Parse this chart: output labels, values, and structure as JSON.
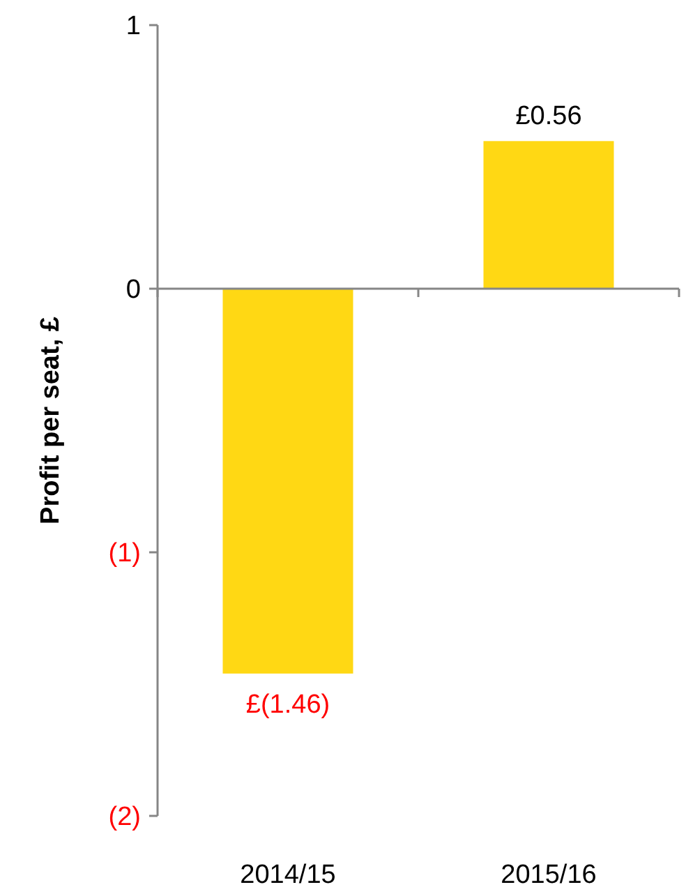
{
  "chart_data": {
    "type": "bar",
    "ylabel": "Profit per seat, £",
    "categories": [
      "2014/15",
      "2015/16"
    ],
    "values": [
      -1.46,
      0.56
    ],
    "color": "#ffd814",
    "value_labels": [
      "£(1.46)",
      "£0.56"
    ],
    "ylim": [
      -2,
      1
    ],
    "yticks": [
      {
        "value": -2,
        "label": "(2)"
      },
      {
        "value": -1,
        "label": "(1)"
      },
      0,
      1
    ]
  }
}
